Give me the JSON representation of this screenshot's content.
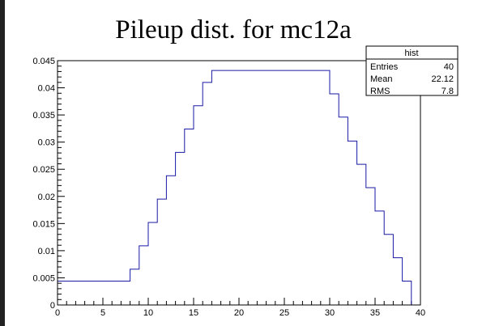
{
  "chart_data": {
    "type": "histogram",
    "title": "Pileup dist. for mc12a",
    "xlabel": "",
    "ylabel": "",
    "xlim": [
      0,
      40
    ],
    "ylim": [
      0,
      0.045
    ],
    "x_ticks": [
      0,
      5,
      10,
      15,
      20,
      25,
      30,
      35,
      40
    ],
    "x_tick_labels": [
      "0",
      "5",
      "10",
      "15",
      "20",
      "25",
      "30",
      "35",
      "40"
    ],
    "y_ticks": [
      0,
      0.005,
      0.01,
      0.015,
      0.02,
      0.025,
      0.03,
      0.035,
      0.04,
      0.045
    ],
    "y_tick_labels": [
      "0",
      "0.005",
      "0.01",
      "0.015",
      "0.02",
      "0.025",
      "0.03",
      "0.035",
      "0.04",
      "0.045"
    ],
    "line_color": "#1a1aa6",
    "bins": [
      {
        "x": [
          0,
          8
        ],
        "y": 0.0044
      },
      {
        "x": [
          8,
          9
        ],
        "y": 0.0066
      },
      {
        "x": [
          9,
          10
        ],
        "y": 0.0109
      },
      {
        "x": [
          10,
          11
        ],
        "y": 0.0152
      },
      {
        "x": [
          11,
          12
        ],
        "y": 0.0195
      },
      {
        "x": [
          12,
          13
        ],
        "y": 0.0238
      },
      {
        "x": [
          13,
          14
        ],
        "y": 0.0281
      },
      {
        "x": [
          14,
          15
        ],
        "y": 0.0324
      },
      {
        "x": [
          15,
          16
        ],
        "y": 0.0367
      },
      {
        "x": [
          16,
          17
        ],
        "y": 0.041
      },
      {
        "x": [
          17,
          30
        ],
        "y": 0.0432
      },
      {
        "x": [
          30,
          31
        ],
        "y": 0.0389
      },
      {
        "x": [
          31,
          32
        ],
        "y": 0.0346
      },
      {
        "x": [
          32,
          33
        ],
        "y": 0.0302
      },
      {
        "x": [
          33,
          34
        ],
        "y": 0.0259
      },
      {
        "x": [
          34,
          35
        ],
        "y": 0.0216
      },
      {
        "x": [
          35,
          36
        ],
        "y": 0.0173
      },
      {
        "x": [
          36,
          37
        ],
        "y": 0.013
      },
      {
        "x": [
          37,
          38
        ],
        "y": 0.0087
      },
      {
        "x": [
          38,
          39
        ],
        "y": 0.0044
      },
      {
        "x": [
          39,
          40
        ],
        "y": 0
      }
    ],
    "stats_box": {
      "name": "hist",
      "rows": [
        {
          "label": "Entries",
          "value": "40"
        },
        {
          "label": "Mean",
          "value": "22.12"
        },
        {
          "label": "RMS",
          "value": "7.8"
        }
      ]
    }
  }
}
